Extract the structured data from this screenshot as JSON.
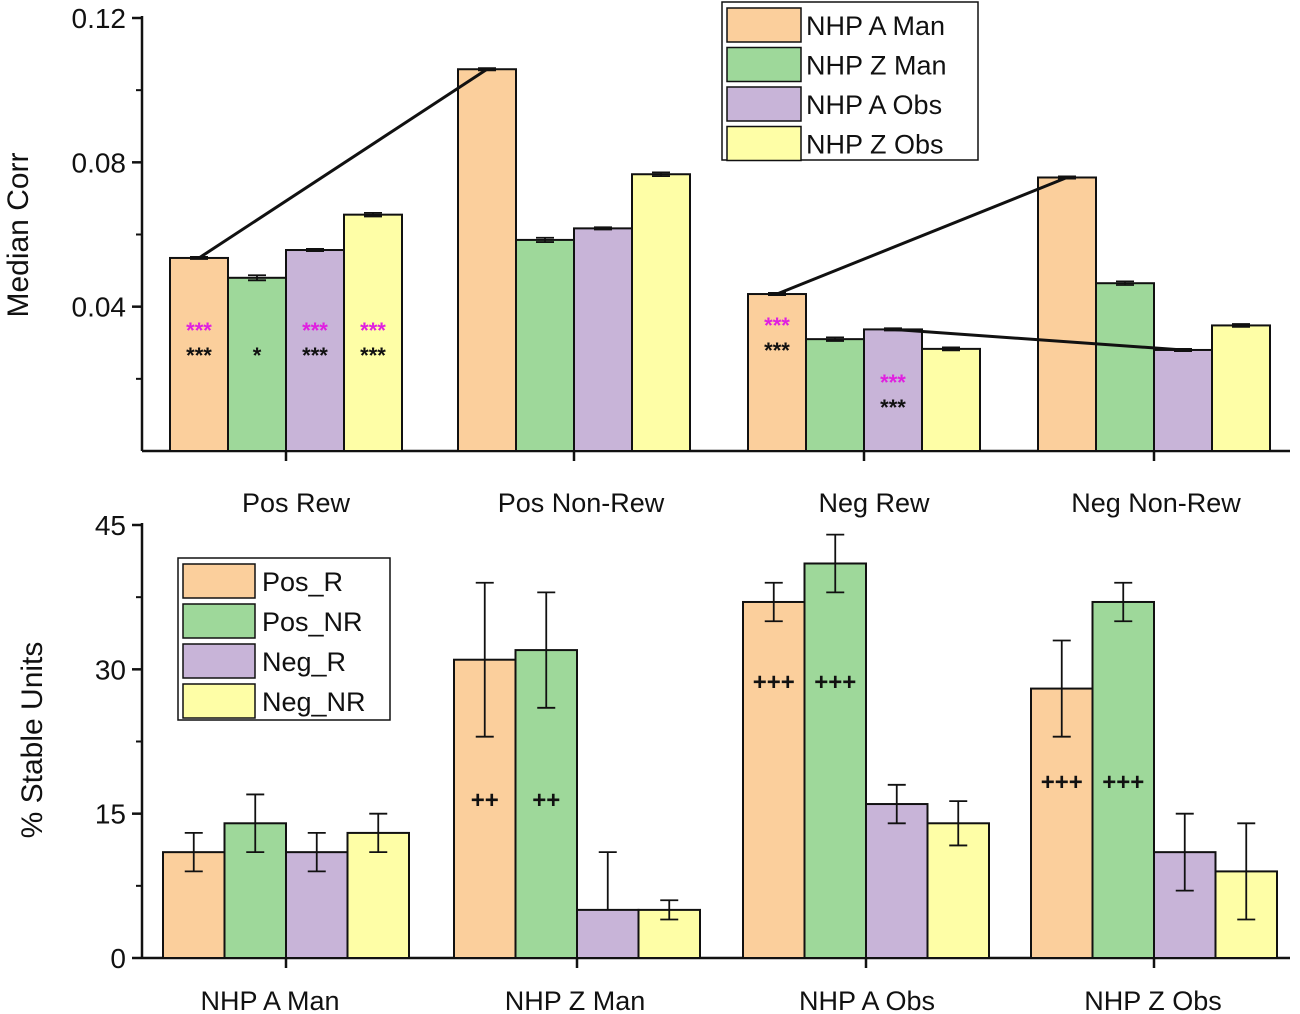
{
  "chart_data": [
    {
      "type": "bar",
      "title": "",
      "xlabel": "",
      "ylabel": "Median Corr",
      "ylim": [
        0,
        0.12
      ],
      "yticks": [
        "0.04",
        "0.08",
        "0.12"
      ],
      "categories": [
        "Pos Rew",
        "Pos Non-Rew",
        "Neg Rew",
        "Neg Non-Rew"
      ],
      "legend_position": "top-right",
      "series": [
        {
          "name": "NHP A Man",
          "color": "#fbcf9c",
          "values": [
            0.0535,
            0.1058,
            0.0435,
            0.0758
          ],
          "errors": [
            0.0003,
            0.0003,
            0.0003,
            0.0003
          ]
        },
        {
          "name": "NHP Z Man",
          "color": "#9ed89a",
          "values": [
            0.048,
            0.0585,
            0.031,
            0.0465
          ],
          "errors": [
            0.0007,
            0.0006,
            0.0005,
            0.0005
          ]
        },
        {
          "name": "NHP A Obs",
          "color": "#c8b4d8",
          "values": [
            0.0557,
            0.0617,
            0.0337,
            0.028
          ],
          "errors": [
            0.0003,
            0.0003,
            0.0003,
            0.0003
          ]
        },
        {
          "name": "NHP Z Obs",
          "color": "#fefea6",
          "values": [
            0.0655,
            0.0767,
            0.0283,
            0.0348
          ],
          "errors": [
            0.0005,
            0.0005,
            0.0004,
            0.0004
          ]
        }
      ],
      "connectors": [
        {
          "from": [
            0,
            0
          ],
          "to": [
            1,
            0
          ]
        },
        {
          "from": [
            2,
            0
          ],
          "to": [
            3,
            0
          ]
        },
        {
          "from": [
            2,
            2
          ],
          "to": [
            3,
            2
          ]
        }
      ],
      "annotations": [
        {
          "category": 0,
          "series": 0,
          "magenta": "***",
          "black": "***"
        },
        {
          "category": 0,
          "series": 1,
          "magenta": "",
          "black": "*"
        },
        {
          "category": 0,
          "series": 2,
          "magenta": "***",
          "black": "***"
        },
        {
          "category": 0,
          "series": 3,
          "magenta": "***",
          "black": "***"
        },
        {
          "category": 2,
          "series": 0,
          "magenta": "***",
          "black": "***"
        },
        {
          "category": 2,
          "series": 2,
          "magenta": "***",
          "black": "***"
        }
      ]
    },
    {
      "type": "bar",
      "title": "",
      "xlabel": "",
      "ylabel": "% Stable Units",
      "ylim": [
        0,
        45
      ],
      "yticks": [
        "0",
        "15",
        "30",
        "45"
      ],
      "categories": [
        "NHP A Man",
        "NHP Z Man",
        "NHP A Obs",
        "NHP Z Obs"
      ],
      "legend_position": "top-left",
      "series": [
        {
          "name": "Pos_R",
          "color": "#fbcf9c",
          "values": [
            11,
            31,
            37,
            28
          ],
          "err_low": [
            2,
            8,
            2,
            5
          ],
          "err_high": [
            2,
            8,
            2,
            5
          ]
        },
        {
          "name": "Pos_NR",
          "color": "#9ed89a",
          "values": [
            14,
            32,
            41,
            37
          ],
          "err_low": [
            3,
            6,
            3,
            2
          ],
          "err_high": [
            3,
            6,
            3,
            2
          ]
        },
        {
          "name": "Neg_R",
          "color": "#c8b4d8",
          "values": [
            11,
            5,
            16,
            11
          ],
          "err_low": [
            2,
            0,
            2,
            4
          ],
          "err_high": [
            2,
            6,
            2,
            4
          ]
        },
        {
          "name": "Neg_NR",
          "color": "#fefea6",
          "values": [
            13,
            5,
            14,
            9
          ],
          "err_low": [
            2,
            1,
            2.3,
            5
          ],
          "err_high": [
            2,
            1,
            2.3,
            5
          ]
        }
      ],
      "annotations": [
        {
          "category": 1,
          "series": 0,
          "text": "++"
        },
        {
          "category": 1,
          "series": 1,
          "text": "++"
        },
        {
          "category": 2,
          "series": 0,
          "text": "+++"
        },
        {
          "category": 2,
          "series": 1,
          "text": "+++"
        },
        {
          "category": 3,
          "series": 0,
          "text": "+++"
        },
        {
          "category": 3,
          "series": 1,
          "text": "+++"
        }
      ]
    }
  ]
}
